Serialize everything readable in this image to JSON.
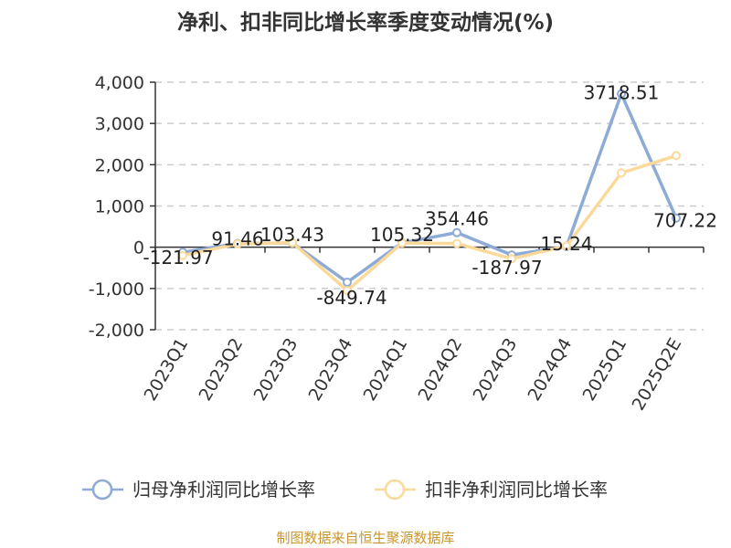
{
  "chart_data": {
    "type": "line",
    "title": "净利、扣非同比增长率季度变动情况(%)",
    "categories": [
      "2023Q1",
      "2023Q2",
      "2023Q3",
      "2023Q4",
      "2024Q1",
      "2024Q2",
      "2024Q3",
      "2024Q4",
      "2025Q1",
      "2025Q2E"
    ],
    "ylim": [
      -2000,
      4000
    ],
    "yticks": [
      4000,
      3000,
      2000,
      1000,
      0,
      -1000,
      -2000
    ],
    "ytick_labels": [
      "4,000",
      "3,000",
      "2,000",
      "1,000",
      "0",
      "-1,000",
      "-2,000"
    ],
    "grid": true,
    "legend_position": "bottom",
    "series": [
      {
        "name": "归母净利润同比增长率",
        "color": "#8eaad6",
        "values": [
          -121.97,
          91.46,
          103.43,
          -849.74,
          105.32,
          354.46,
          -187.97,
          15.24,
          3718.51,
          707.22
        ],
        "labels": [
          "-121.97",
          "91.46",
          "103.43",
          "-849.74",
          "105.32",
          "354.46",
          "-187.97",
          "15.24",
          "3718.51",
          "707.22"
        ]
      },
      {
        "name": "扣非净利润同比增长率",
        "color": "#fbd99a",
        "values": [
          -200,
          80,
          110,
          -1050,
          100,
          90,
          -280,
          30,
          1800,
          2220
        ]
      }
    ]
  },
  "source": "制图数据来自恒生聚源数据库"
}
